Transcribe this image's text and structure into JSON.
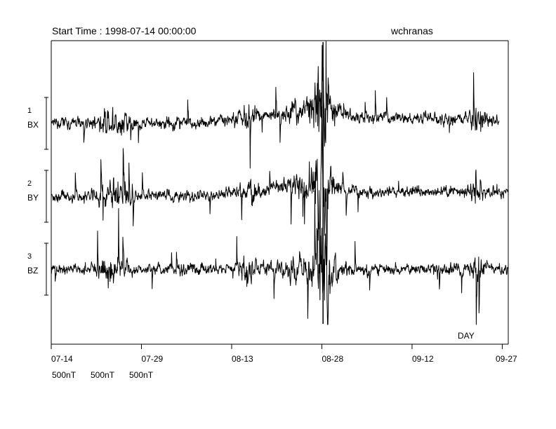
{
  "header": {
    "title": "Start Time : 1998-07-14 00:00:00",
    "station": "wchranas"
  },
  "chart_data": {
    "type": "line",
    "title": "Start Time : 1998-07-14 00:00:00",
    "xlabel": "DAY",
    "xlim_days_from_start": [
      0,
      76
    ],
    "x_ticks": [
      {
        "label": "07-14",
        "day": 0
      },
      {
        "label": "07-29",
        "day": 15
      },
      {
        "label": "08-13",
        "day": 30
      },
      {
        "label": "08-28",
        "day": 45
      },
      {
        "label": "09-12",
        "day": 60
      },
      {
        "label": "09-27",
        "day": 75
      }
    ],
    "series": [
      {
        "index": "1",
        "name": "BX",
        "scale": "500nT"
      },
      {
        "index": "2",
        "name": "BY",
        "scale": "500nT"
      },
      {
        "index": "3",
        "name": "BZ",
        "scale": "500nT"
      }
    ],
    "scale_labels": [
      "500nT",
      "500nT",
      "500nT"
    ],
    "line_color": "#000000",
    "frame_color": "#000000"
  }
}
